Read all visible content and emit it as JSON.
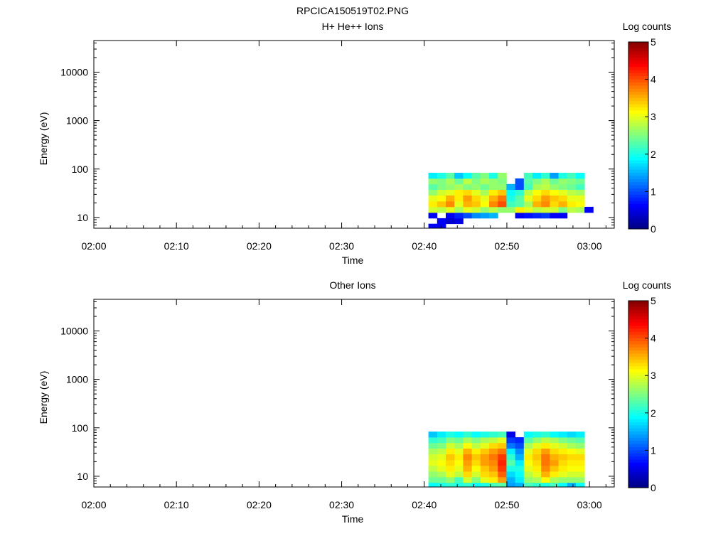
{
  "figure_title": "RPCICA150519T02.PNG",
  "colormap": [
    "#00007f",
    "#0000ff",
    "#0080ff",
    "#00ffff",
    "#80ff80",
    "#ffff00",
    "#ff8000",
    "#ff0000",
    "#7f0000"
  ],
  "chart_data": [
    {
      "type": "heatmap",
      "title": "H+ He++ Ions",
      "xlabel": "Time",
      "ylabel": "Energy (eV)",
      "x_ticks": [
        "02:00",
        "02:10",
        "02:20",
        "02:30",
        "02:40",
        "02:50",
        "03:00"
      ],
      "y_ticks": [
        "10",
        "100",
        "1000",
        "10000"
      ],
      "y_scale": "log",
      "ylim": [
        6,
        45000
      ],
      "xlim_minutes": [
        0,
        63
      ],
      "colorbar": {
        "label": "Log counts",
        "ticks": [
          "0",
          "1",
          "2",
          "3",
          "4",
          "5"
        ],
        "range": [
          0,
          5
        ]
      },
      "energy_bins": [
        6.5,
        8.5,
        11,
        14.5,
        19,
        25,
        33,
        43,
        56,
        73,
        96
      ],
      "time_start_minutes": 40.5,
      "time_bin_minutes": 1.05,
      "counts_note": "log counts per time bin (columns) x energy bin (rows, low->high); null = no data",
      "log_counts": [
        [
          0.6,
          0.6,
          null,
          null,
          null,
          null,
          null,
          null,
          null,
          null,
          null,
          null,
          null,
          null,
          null,
          null,
          null,
          null,
          null,
          null
        ],
        [
          null,
          0.6,
          0.4,
          0.5,
          null,
          null,
          null,
          null,
          null,
          null,
          null,
          null,
          null,
          null,
          null,
          null,
          null,
          null,
          null,
          null
        ],
        [
          0.6,
          null,
          0.6,
          0.8,
          1.0,
          1.3,
          1.4,
          1.5,
          null,
          null,
          0.6,
          0.7,
          0.8,
          0.9,
          0.6,
          0.6,
          null,
          null,
          null,
          null
        ],
        [
          2.9,
          2.8,
          3.0,
          2.7,
          3.0,
          2.9,
          2.6,
          2.8,
          2.6,
          2.6,
          3.2,
          3.0,
          2.8,
          2.9,
          2.9,
          2.5,
          2.8,
          2.7,
          0.6,
          null
        ],
        [
          3.2,
          3.4,
          3.7,
          3.0,
          3.5,
          3.4,
          3.1,
          3.7,
          4.0,
          2.2,
          2.3,
          2.7,
          3.5,
          3.7,
          3.3,
          3.5,
          3.2,
          3.1,
          null,
          null
        ],
        [
          3.0,
          3.1,
          3.5,
          3.2,
          3.6,
          3.3,
          3.0,
          3.5,
          3.8,
          2.0,
          2.3,
          3.0,
          3.3,
          3.6,
          3.4,
          3.3,
          3.0,
          3.0,
          null,
          null
        ],
        [
          2.6,
          2.9,
          3.0,
          3.2,
          3.3,
          3.0,
          2.7,
          3.2,
          3.4,
          1.9,
          2.1,
          2.8,
          3.1,
          3.3,
          3.1,
          3.0,
          2.8,
          2.7,
          null,
          null
        ],
        [
          2.3,
          2.5,
          2.6,
          2.7,
          2.5,
          2.6,
          2.4,
          2.6,
          2.6,
          1.5,
          1.0,
          2.2,
          2.7,
          2.8,
          2.6,
          2.5,
          2.4,
          2.2,
          null,
          null
        ],
        [
          2.6,
          2.5,
          2.7,
          2.4,
          2.8,
          2.5,
          2.7,
          2.6,
          2.5,
          null,
          1.0,
          2.3,
          2.5,
          2.7,
          2.4,
          2.6,
          2.5,
          2.4,
          null,
          null
        ],
        [
          1.8,
          2.0,
          2.3,
          1.6,
          1.9,
          2.3,
          2.5,
          2.0,
          2.6,
          null,
          null,
          2.2,
          1.8,
          2.1,
          1.4,
          2.0,
          2.2,
          1.9,
          null,
          null
        ],
        [
          null,
          null,
          null,
          null,
          null,
          null,
          null,
          null,
          null,
          null,
          null,
          null,
          null,
          null,
          null,
          null,
          null,
          null,
          null,
          null
        ]
      ]
    },
    {
      "type": "heatmap",
      "title": "Other Ions",
      "xlabel": "Time",
      "ylabel": "Energy (eV)",
      "x_ticks": [
        "02:00",
        "02:10",
        "02:20",
        "02:30",
        "02:40",
        "02:50",
        "03:00"
      ],
      "y_ticks": [
        "10",
        "100",
        "1000",
        "10000"
      ],
      "y_scale": "log",
      "ylim": [
        6,
        45000
      ],
      "xlim_minutes": [
        0,
        63
      ],
      "colorbar": {
        "label": "Log counts",
        "ticks": [
          "0",
          "1",
          "2",
          "3",
          "4",
          "5"
        ],
        "range": [
          0,
          5
        ]
      },
      "energy_bins": [
        6.5,
        8.5,
        11,
        14.5,
        19,
        25,
        33,
        43,
        56,
        73,
        96
      ],
      "time_start_minutes": 40.5,
      "time_bin_minutes": 1.05,
      "counts_note": "log counts per time bin (columns) x energy bin (rows, low->high); null = no data",
      "log_counts": [
        [
          1.9,
          2.0,
          2.1,
          2.0,
          2.1,
          1.9,
          2.0,
          2.2,
          2.3,
          1.4,
          1.5,
          2.2,
          2.1,
          2.0,
          2.2,
          1.9,
          1.5,
          1.9,
          null,
          null
        ],
        [
          2.4,
          2.4,
          2.6,
          2.2,
          2.9,
          2.5,
          3.0,
          3.2,
          3.6,
          1.5,
          1.8,
          2.6,
          2.7,
          3.1,
          2.7,
          2.6,
          2.6,
          2.6,
          null,
          null
        ],
        [
          2.6,
          2.7,
          3.0,
          2.8,
          3.3,
          2.9,
          3.3,
          3.4,
          3.9,
          1.7,
          1.9,
          2.8,
          3.0,
          3.5,
          3.2,
          3.0,
          2.9,
          2.9,
          null,
          null
        ],
        [
          2.8,
          3.0,
          3.2,
          3.0,
          3.5,
          3.1,
          3.4,
          3.6,
          4.1,
          2.0,
          2.0,
          3.0,
          3.2,
          3.7,
          3.4,
          3.2,
          3.1,
          3.1,
          null,
          null
        ],
        [
          3.0,
          3.1,
          3.3,
          3.1,
          3.6,
          3.3,
          3.6,
          3.7,
          4.2,
          2.3,
          1.8,
          3.1,
          3.3,
          3.8,
          3.6,
          3.3,
          3.2,
          3.2,
          null,
          null
        ],
        [
          2.9,
          3.0,
          3.4,
          3.2,
          3.7,
          3.4,
          3.6,
          3.8,
          4.1,
          2.1,
          1.5,
          3.2,
          3.4,
          3.8,
          3.5,
          3.4,
          3.3,
          3.3,
          null,
          null
        ],
        [
          2.7,
          2.8,
          3.2,
          3.0,
          3.5,
          3.2,
          3.4,
          3.6,
          3.8,
          1.8,
          1.3,
          3.0,
          3.3,
          3.6,
          3.3,
          3.2,
          3.1,
          3.0,
          null,
          null
        ],
        [
          2.4,
          2.5,
          2.9,
          2.7,
          3.1,
          2.8,
          3.0,
          3.3,
          3.4,
          1.2,
          1.0,
          2.7,
          3.0,
          3.2,
          3.0,
          2.9,
          2.7,
          2.6,
          null,
          null
        ],
        [
          2.1,
          2.2,
          2.5,
          2.4,
          2.7,
          2.5,
          2.7,
          2.8,
          3.0,
          0.9,
          0.8,
          2.3,
          2.6,
          2.8,
          2.7,
          2.5,
          2.4,
          2.3,
          null,
          null
        ],
        [
          1.6,
          1.8,
          2.0,
          1.9,
          2.1,
          1.9,
          2.0,
          2.1,
          2.2,
          0.5,
          null,
          1.9,
          2.0,
          2.1,
          1.9,
          1.8,
          1.7,
          1.8,
          null,
          null
        ],
        [
          null,
          null,
          null,
          null,
          null,
          null,
          null,
          null,
          null,
          null,
          null,
          null,
          null,
          null,
          null,
          null,
          null,
          null,
          null,
          null
        ]
      ]
    }
  ]
}
